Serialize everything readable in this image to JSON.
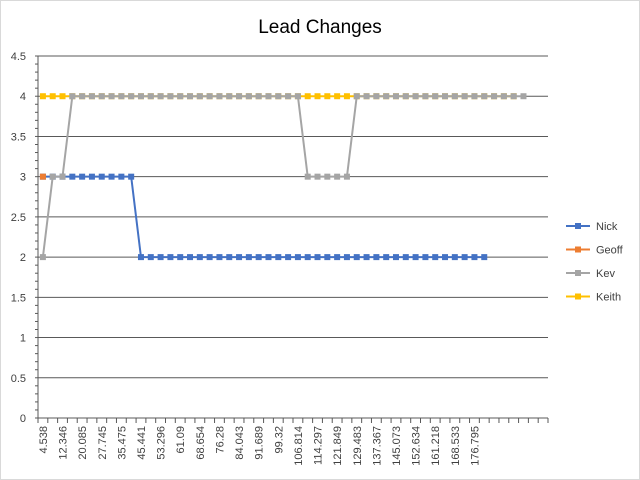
{
  "chart_data": {
    "type": "line",
    "title": "Lead Changes",
    "xlabel": "",
    "ylabel": "",
    "ylim": [
      0,
      4.5
    ],
    "yticks": [
      "0",
      "0.5",
      "1",
      "1.5",
      "2",
      "2.5",
      "3",
      "3.5",
      "4",
      "4.5"
    ],
    "xtick_labels": [
      "4.538",
      "12.346",
      "20.085",
      "27.745",
      "35.475",
      "45.441",
      "53.296",
      "61.09",
      "68.654",
      "76.28",
      "84.043",
      "91.689",
      "99.32",
      "106.814",
      "114.297",
      "121.849",
      "129.483",
      "137.367",
      "145.073",
      "152.634",
      "161.218",
      "168.533",
      "176.795"
    ],
    "grid": true,
    "legend_position": "right",
    "series": [
      {
        "name": "Nick",
        "color": "#4472c4",
        "values": [
          3,
          3,
          3,
          3,
          3,
          3,
          3,
          3,
          3,
          3,
          2,
          2,
          2,
          2,
          2,
          2,
          2,
          2,
          2,
          2,
          2,
          2,
          2,
          2,
          2,
          2,
          2,
          2,
          2,
          2,
          2,
          2,
          2,
          2,
          2,
          2,
          2,
          2,
          2,
          2,
          2,
          2,
          2,
          2,
          2,
          2
        ]
      },
      {
        "name": "Geoff",
        "color": "#ed7d31",
        "values": [
          3
        ]
      },
      {
        "name": "Kev",
        "color": "#a5a5a5",
        "values": [
          2,
          3,
          3,
          4,
          4,
          4,
          4,
          4,
          4,
          4,
          4,
          4,
          4,
          4,
          4,
          4,
          4,
          4,
          4,
          4,
          4,
          4,
          4,
          4,
          4,
          4,
          4,
          3,
          3,
          3,
          3,
          3,
          4,
          4,
          4,
          4,
          4,
          4,
          4,
          4,
          4,
          4,
          4,
          4,
          4,
          4,
          4,
          4,
          4,
          4
        ]
      },
      {
        "name": "Keith",
        "color": "#ffc000",
        "values": [
          4,
          4,
          4,
          4,
          4,
          4,
          4,
          4,
          4,
          4,
          4,
          4,
          4,
          4,
          4,
          4,
          4,
          4,
          4,
          4,
          4,
          4,
          4,
          4,
          4,
          4,
          4,
          4,
          4,
          4,
          4,
          4,
          4,
          4,
          4,
          4,
          4,
          4,
          4,
          4,
          4,
          4,
          4,
          4,
          4,
          4,
          4,
          4,
          4
        ]
      }
    ]
  }
}
